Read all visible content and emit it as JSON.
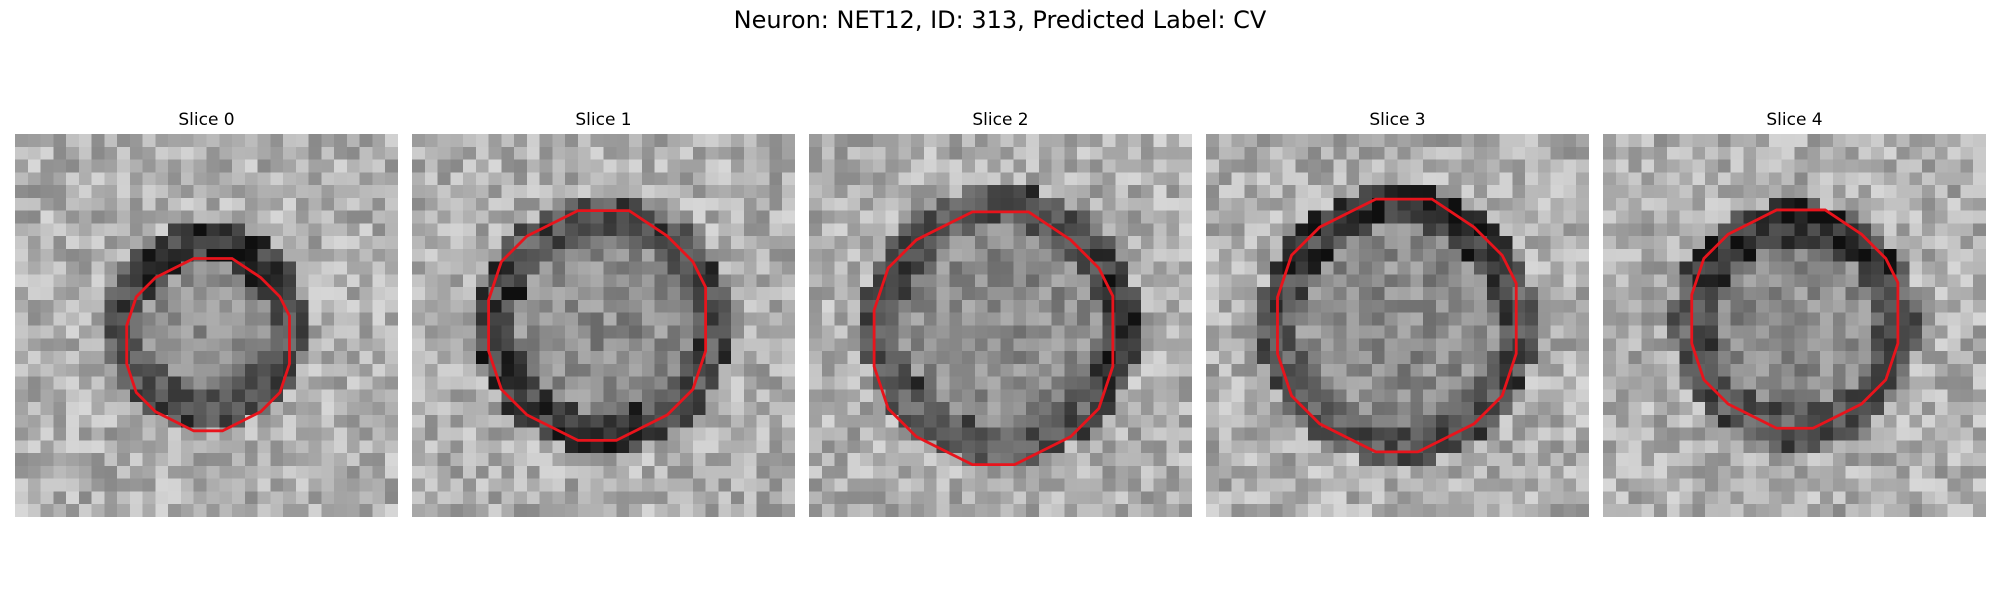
{
  "figure": {
    "title": "Neuron: NET12, ID: 313, Predicted Label: CV"
  },
  "panels": [
    {
      "label": "Slice 0",
      "seed": 11,
      "contour_scale": 0.75,
      "contour_shift": [
        0.5,
        1.5
      ],
      "ring_side": "top"
    },
    {
      "label": "Slice 1",
      "seed": 23,
      "contour_scale": 1.0,
      "contour_shift": [
        0.0,
        0.0
      ],
      "ring_side": "left-bottom"
    },
    {
      "label": "Slice 2",
      "seed": 37,
      "contour_scale": 1.1,
      "contour_shift": [
        0.0,
        1.0
      ],
      "ring_side": "right"
    },
    {
      "label": "Slice 3",
      "seed": 49,
      "contour_scale": 1.1,
      "contour_shift": [
        0.5,
        0.0
      ],
      "ring_side": "top"
    },
    {
      "label": "Slice 4",
      "seed": 61,
      "contour_scale": 0.95,
      "contour_shift": [
        0.5,
        -0.5
      ],
      "ring_side": "top"
    }
  ],
  "colors": {
    "contour": "#e8141c",
    "background": "#ffffff"
  }
}
